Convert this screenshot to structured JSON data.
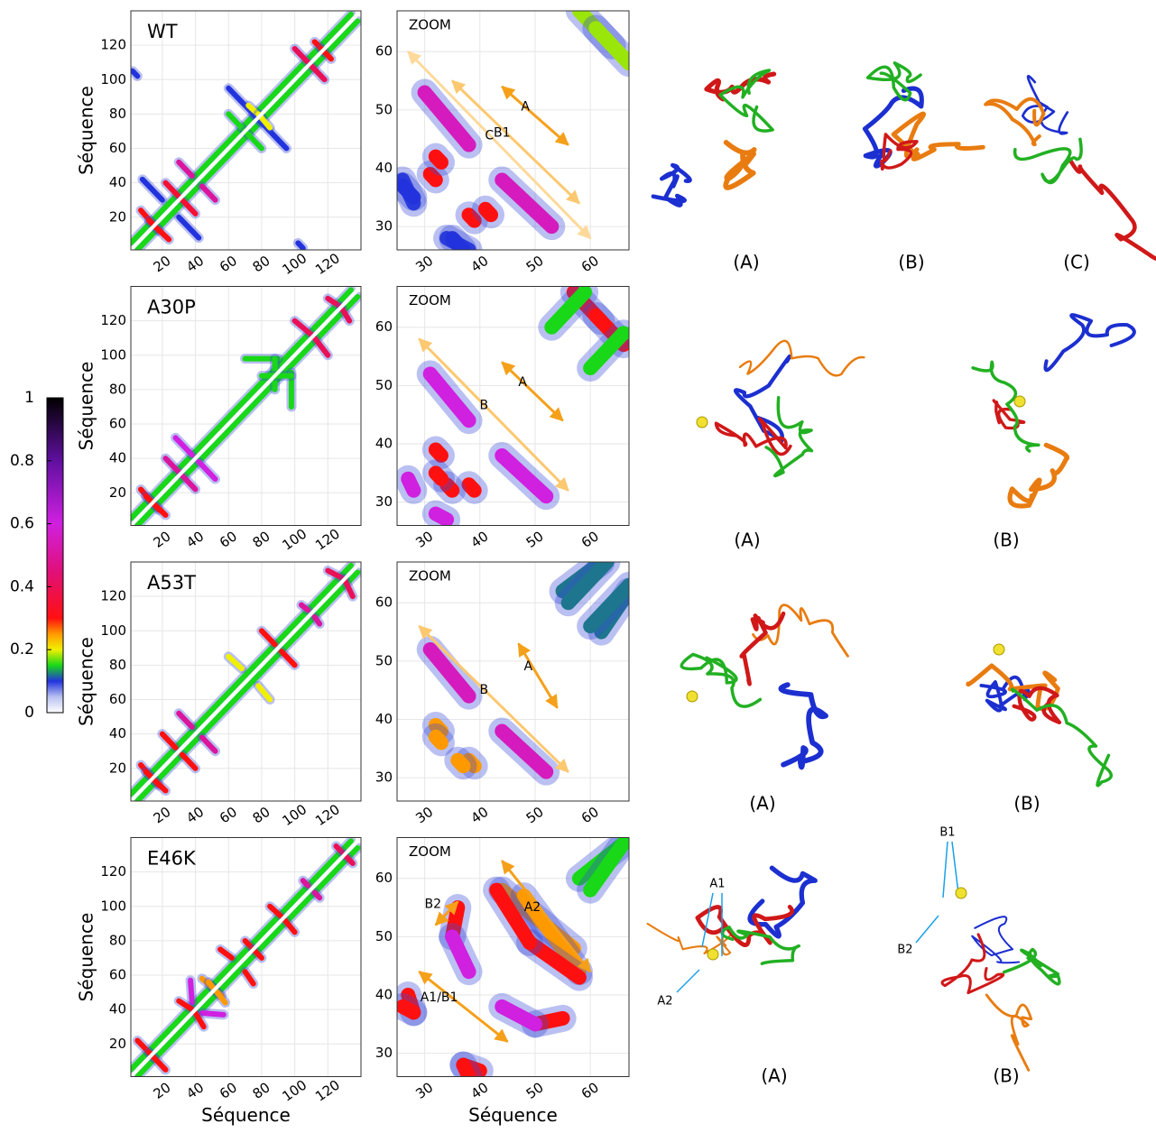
{
  "chart_data": [
    {
      "type": "contact_map",
      "label": "WT",
      "ylabel": "Séquence",
      "xlim": [
        1,
        140
      ],
      "ylim": [
        1,
        140
      ],
      "xticks": [
        20,
        40,
        60,
        80,
        100,
        120
      ],
      "yticks": [
        20,
        40,
        60,
        80,
        100,
        120
      ],
      "contacts": [
        [
          1,
          5,
          134,
          138,
          0.15
        ],
        [
          7,
          24,
          18,
          12,
          0.3
        ],
        [
          30,
          52,
          38,
          44,
          0.5
        ],
        [
          22,
          40,
          30,
          32,
          0.35
        ],
        [
          8,
          42,
          20,
          30,
          0.1
        ],
        [
          60,
          80,
          70,
          70,
          0.15
        ],
        [
          60,
          95,
          80,
          75,
          0.1
        ],
        [
          72,
          85,
          80,
          78,
          0.2
        ],
        [
          100,
          118,
          108,
          110,
          0.4
        ],
        [
          112,
          122,
          118,
          116,
          0.3
        ],
        [
          2,
          105,
          5,
          102,
          0.1
        ]
      ]
    },
    {
      "type": "contact_map",
      "label": "ZOOM",
      "xlim": [
        25,
        67
      ],
      "ylim": [
        26,
        67
      ],
      "xticks": [
        30,
        40,
        50,
        60
      ],
      "yticks": [
        30,
        40,
        50,
        60
      ],
      "contacts": [
        [
          30,
          53,
          38,
          44,
          0.55
        ],
        [
          31,
          39,
          32,
          38,
          0.3
        ],
        [
          41,
          33,
          42,
          32,
          0.3
        ],
        [
          58,
          67,
          64,
          61,
          0.18
        ],
        [
          26,
          38,
          28,
          34,
          0.1
        ],
        [
          35,
          28,
          37,
          26,
          0.1
        ]
      ],
      "annotations": [
        {
          "text": "A",
          "x1": 44,
          "y1": 54,
          "x2": 56,
          "y2": 44,
          "color": "#f5a01a"
        },
        {
          "text": "B1",
          "x1": 35,
          "y1": 55,
          "x2": 58,
          "y2": 34,
          "color": "#fcc870"
        },
        {
          "text": "C",
          "x1": 27,
          "y1": 60,
          "x2": 60,
          "y2": 28,
          "color": "#fdd99a"
        }
      ]
    },
    {
      "type": "contact_map",
      "label": "A30P",
      "ylabel": "Séquence",
      "xlim": [
        1,
        140
      ],
      "ylim": [
        1,
        140
      ],
      "xticks": [
        20,
        40,
        60,
        80,
        100,
        120
      ],
      "yticks": [
        20,
        40,
        60,
        80,
        100,
        120
      ],
      "contacts": [
        [
          1,
          5,
          134,
          138,
          0.15
        ],
        [
          7,
          22,
          18,
          10,
          0.3
        ],
        [
          28,
          52,
          38,
          42,
          0.6
        ],
        [
          22,
          40,
          30,
          32,
          0.5
        ],
        [
          70,
          98,
          90,
          98,
          0.15
        ],
        [
          88,
          98,
          88,
          80,
          0.15
        ],
        [
          100,
          120,
          110,
          112,
          0.4
        ],
        [
          120,
          133,
          128,
          128,
          0.4
        ]
      ]
    },
    {
      "type": "contact_map",
      "label": "ZOOM",
      "xlim": [
        25,
        67
      ],
      "ylim": [
        26,
        67
      ],
      "xticks": [
        30,
        40,
        50,
        60
      ],
      "yticks": [
        30,
        40,
        50,
        60
      ],
      "contacts": [
        [
          31,
          52,
          38,
          44,
          0.6
        ],
        [
          32,
          39,
          33,
          38,
          0.3
        ],
        [
          34,
          33,
          35,
          32,
          0.3
        ],
        [
          27,
          34,
          28,
          32,
          0.6
        ],
        [
          57,
          66,
          62,
          61,
          0.3
        ],
        [
          60,
          53,
          66,
          59,
          0.15
        ]
      ],
      "annotations": [
        {
          "text": "A",
          "x1": 44,
          "y1": 54,
          "x2": 55,
          "y2": 44,
          "color": "#f5a01a"
        },
        {
          "text": "B",
          "x1": 29,
          "y1": 58,
          "x2": 56,
          "y2": 32,
          "color": "#fcc870"
        }
      ]
    },
    {
      "type": "contact_map",
      "label": "A53T",
      "ylabel": "Séquence",
      "xlim": [
        1,
        140
      ],
      "ylim": [
        1,
        140
      ],
      "xticks": [
        20,
        40,
        60,
        80,
        100,
        120
      ],
      "yticks": [
        20,
        40,
        60,
        80,
        100,
        120
      ],
      "contacts": [
        [
          1,
          5,
          134,
          138,
          0.15
        ],
        [
          7,
          22,
          18,
          10,
          0.3
        ],
        [
          30,
          52,
          38,
          44,
          0.5
        ],
        [
          20,
          40,
          28,
          32,
          0.3
        ],
        [
          60,
          85,
          68,
          78,
          0.2
        ],
        [
          80,
          100,
          88,
          92,
          0.3
        ],
        [
          104,
          115,
          108,
          112,
          0.5
        ],
        [
          120,
          135,
          130,
          130,
          0.4
        ]
      ]
    },
    {
      "type": "contact_map",
      "label": "ZOOM",
      "xlim": [
        25,
        67
      ],
      "ylim": [
        26,
        67
      ],
      "xticks": [
        30,
        40,
        50,
        60
      ],
      "yticks": [
        30,
        40,
        50,
        60
      ],
      "contacts": [
        [
          31,
          52,
          38,
          44,
          0.55
        ],
        [
          32,
          39,
          33,
          38,
          0.25
        ],
        [
          36,
          33,
          37,
          32,
          0.25
        ],
        [
          55,
          62,
          62,
          67,
          0.12
        ],
        [
          60,
          56,
          67,
          63,
          0.12
        ]
      ],
      "annotations": [
        {
          "text": "A",
          "x1": 47,
          "y1": 53,
          "x2": 54,
          "y2": 42,
          "color": "#f5a01a"
        },
        {
          "text": "B",
          "x1": 29,
          "y1": 56,
          "x2": 56,
          "y2": 31,
          "color": "#fcc870"
        }
      ]
    },
    {
      "type": "contact_map",
      "label": "E46K",
      "ylabel": "Séquence",
      "xlabel": "Séquence",
      "xlim": [
        1,
        140
      ],
      "ylim": [
        1,
        140
      ],
      "xticks": [
        20,
        40,
        60,
        80,
        100,
        120
      ],
      "yticks": [
        20,
        40,
        60,
        80,
        100,
        120
      ],
      "contacts": [
        [
          1,
          5,
          134,
          138,
          0.15
        ],
        [
          5,
          22,
          15,
          12,
          0.3
        ],
        [
          37,
          57,
          38,
          44,
          0.6
        ],
        [
          44,
          58,
          56,
          48,
          0.25
        ],
        [
          30,
          45,
          38,
          40,
          0.3
        ],
        [
          55,
          75,
          62,
          70,
          0.3
        ],
        [
          70,
          80,
          75,
          75,
          0.3
        ],
        [
          85,
          100,
          92,
          94,
          0.3
        ],
        [
          105,
          115,
          108,
          112,
          0.5
        ],
        [
          125,
          135,
          130,
          130,
          0.4
        ]
      ]
    },
    {
      "type": "contact_map",
      "label": "ZOOM",
      "xlabel": "Séquence",
      "xlim": [
        25,
        67
      ],
      "ylim": [
        26,
        67
      ],
      "xticks": [
        30,
        40,
        50,
        60
      ],
      "yticks": [
        30,
        40,
        50,
        60
      ],
      "contacts": [
        [
          36,
          55,
          35,
          50,
          0.3
        ],
        [
          35,
          50,
          38,
          44,
          0.6
        ],
        [
          44,
          58,
          57,
          48,
          0.25
        ],
        [
          49,
          49,
          58,
          43,
          0.3
        ],
        [
          27,
          40,
          28,
          37,
          0.3
        ],
        [
          37,
          28,
          38,
          26,
          0.3
        ],
        [
          58,
          60,
          66,
          66,
          0.15
        ]
      ],
      "annotations": [
        {
          "text": "A2",
          "x1": 44,
          "y1": 63,
          "x2": 60,
          "y2": 44,
          "color": "#f5a01a"
        },
        {
          "text": "B2",
          "x1": 36,
          "y1": 56,
          "x2": 32,
          "y2": 52,
          "color": "#f5a01a"
        },
        {
          "text": "A1/B1",
          "x1": 29,
          "y1": 44,
          "x2": 45,
          "y2": 32,
          "color": "#f5a01a"
        }
      ]
    }
  ],
  "colorbar": {
    "ticks": [
      0,
      0.2,
      0.4,
      0.6,
      0.8,
      1
    ],
    "colormap": [
      {
        "value": 0,
        "color": "#ffffff"
      },
      {
        "value": 0.05,
        "color": "#b8c0f0"
      },
      {
        "value": 0.1,
        "color": "#2233dd"
      },
      {
        "value": 0.15,
        "color": "#18d818"
      },
      {
        "value": 0.2,
        "color": "#f0f000"
      },
      {
        "value": 0.25,
        "color": "#ff9900"
      },
      {
        "value": 0.3,
        "color": "#ff1010"
      },
      {
        "value": 0.45,
        "color": "#e0107a"
      },
      {
        "value": 0.6,
        "color": "#d020e0"
      },
      {
        "value": 0.8,
        "color": "#6010a0"
      },
      {
        "value": 1,
        "color": "#000000"
      }
    ]
  },
  "structures": [
    {
      "labels": [
        "(A)",
        "(B)",
        "(C)"
      ]
    },
    {
      "labels": [
        "(A)",
        "(B)"
      ]
    },
    {
      "labels": [
        "(A)",
        "(B)"
      ]
    },
    {
      "labels": [
        "(A)",
        "(B)"
      ],
      "inner_labels": [
        "A1",
        "A2",
        "B1",
        "B2"
      ]
    }
  ]
}
